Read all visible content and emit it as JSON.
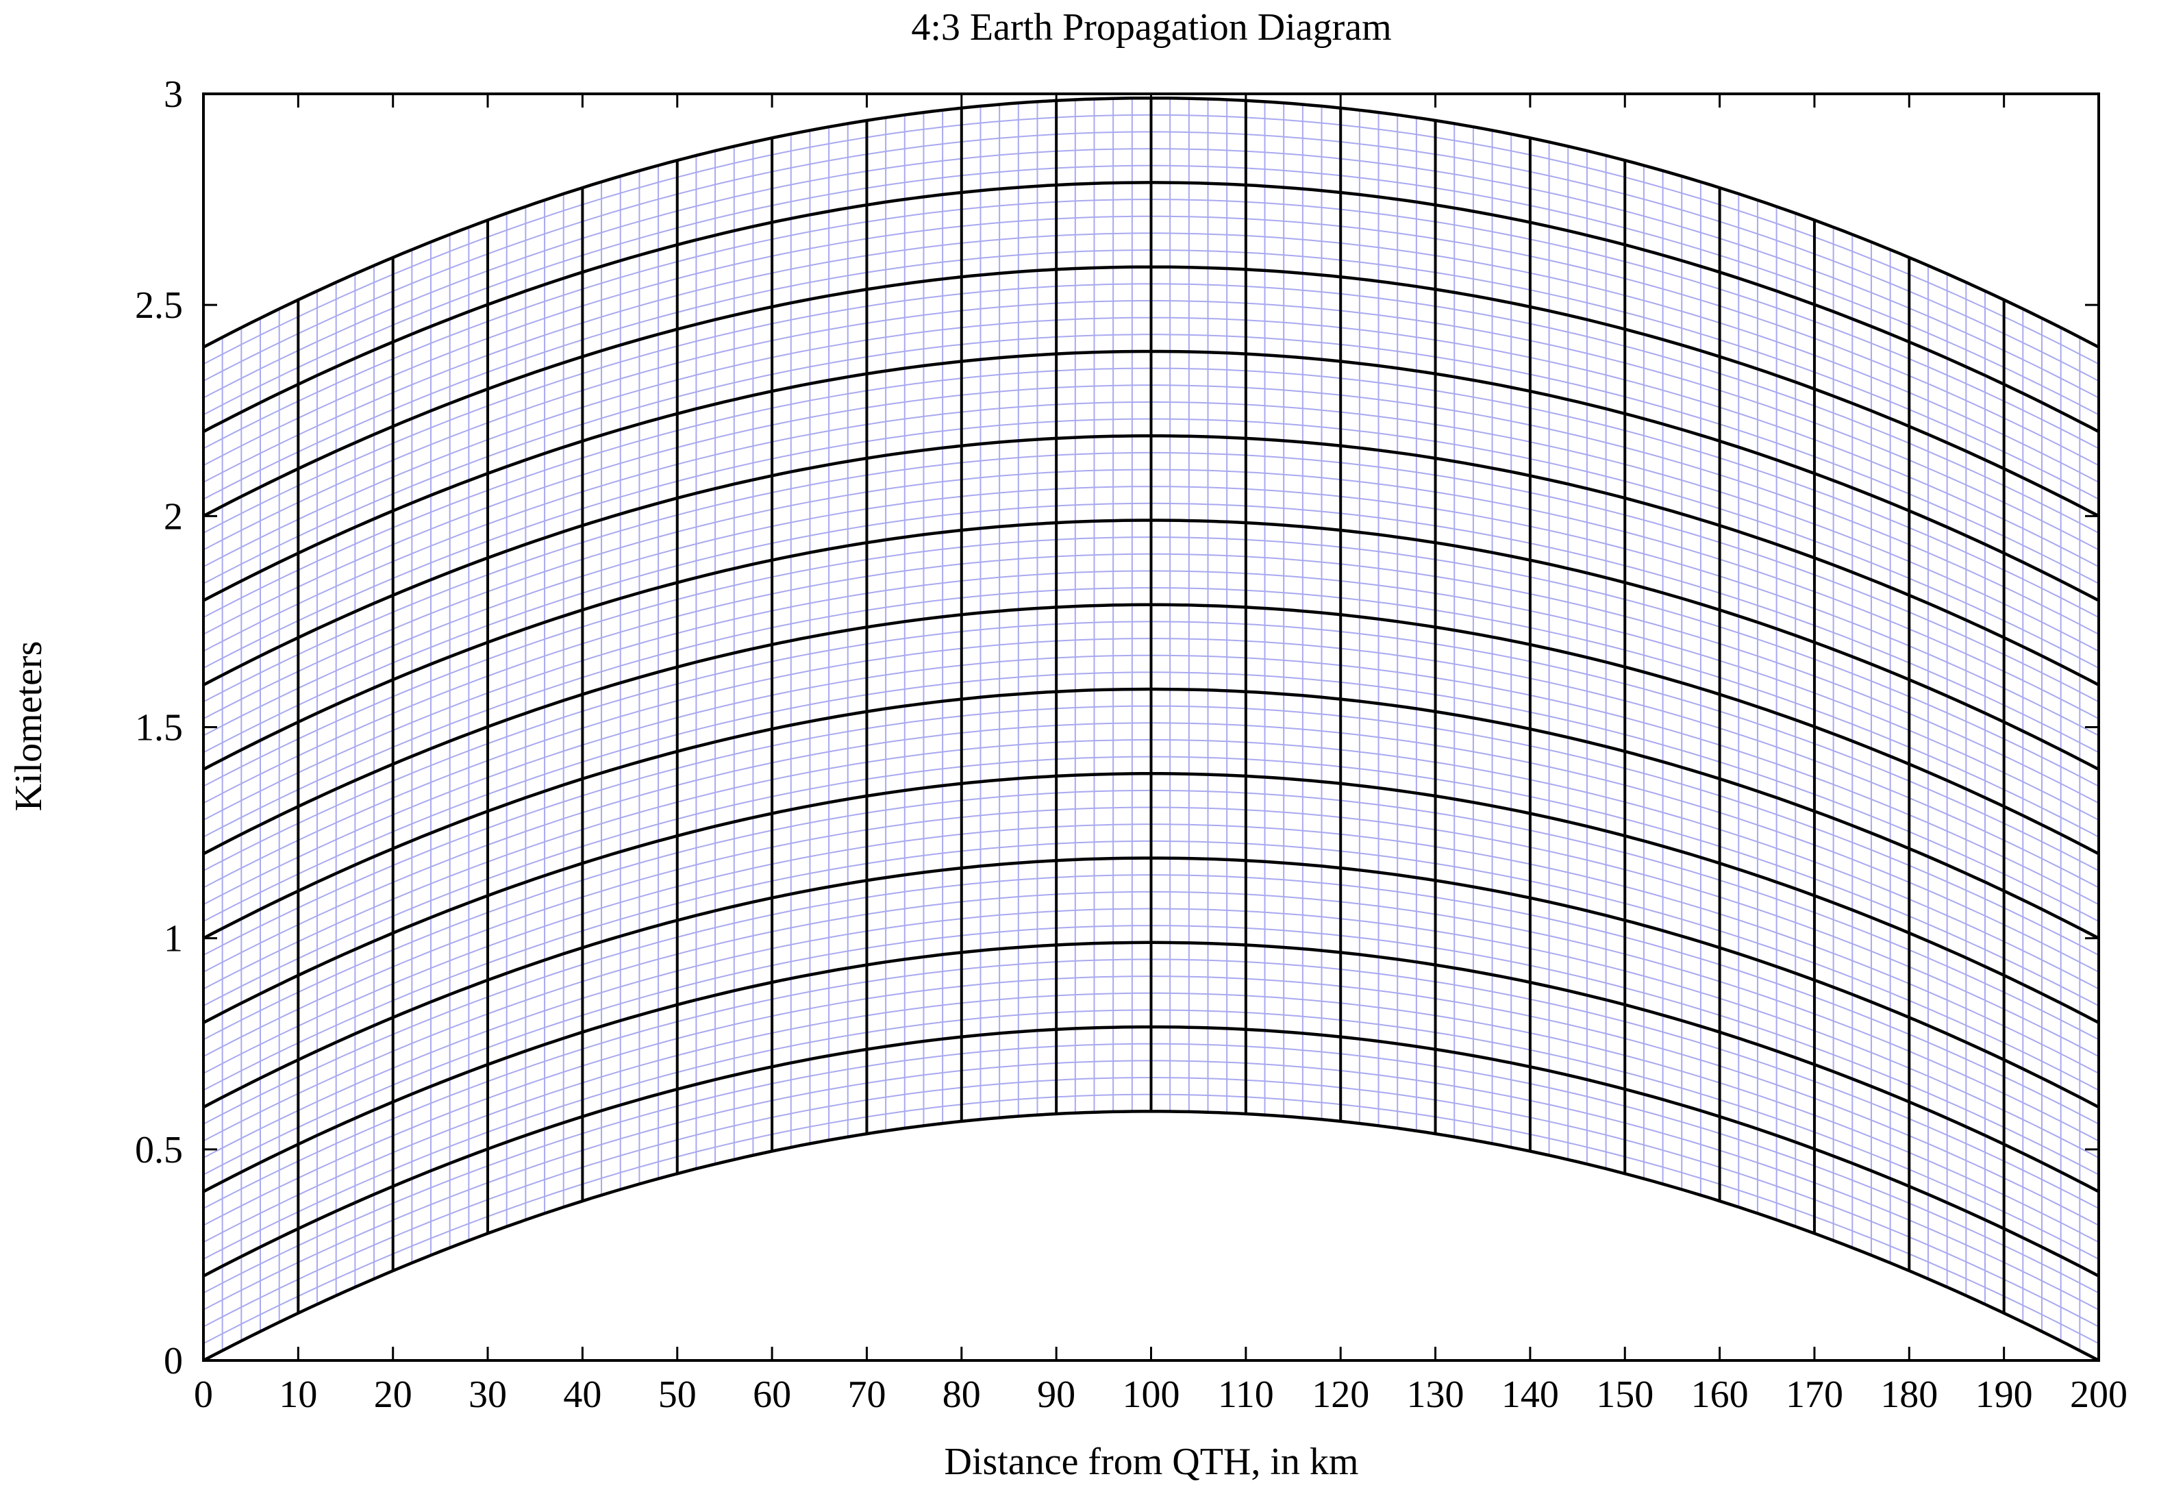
{
  "chart_data": {
    "type": "line",
    "title": "4:3 Earth Propagation Diagram",
    "xlabel": "Distance from QTH, in km",
    "ylabel": "Kilometers",
    "xlim": [
      0,
      200
    ],
    "ylim": [
      0,
      3
    ],
    "x_ticks": [
      "0",
      "10",
      "20",
      "30",
      "40",
      "50",
      "60",
      "70",
      "80",
      "90",
      "100",
      "110",
      "120",
      "130",
      "140",
      "150",
      "160",
      "170",
      "180",
      "190",
      "200"
    ],
    "y_ticks": [
      "0",
      "0.5",
      "1",
      "1.5",
      "2",
      "2.5",
      "3"
    ],
    "grid": "curved earth-bulge grid",
    "x": [
      0,
      100,
      200
    ],
    "series": [
      {
        "values": [
          0.0,
          0.59,
          0.0
        ]
      },
      {
        "values": [
          0.2,
          0.79,
          0.2
        ]
      },
      {
        "values": [
          0.4,
          0.99,
          0.4
        ]
      },
      {
        "values": [
          0.6,
          1.19,
          0.6
        ]
      },
      {
        "values": [
          0.8,
          1.39,
          0.8
        ]
      },
      {
        "values": [
          1.0,
          1.59,
          1.0
        ]
      },
      {
        "values": [
          1.2,
          1.79,
          1.2
        ]
      },
      {
        "values": [
          1.4,
          1.99,
          1.4
        ]
      },
      {
        "values": [
          1.6,
          2.19,
          1.6
        ]
      },
      {
        "values": [
          1.8,
          2.39,
          1.8
        ]
      },
      {
        "values": [
          2.0,
          2.59,
          2.0
        ]
      },
      {
        "values": [
          2.2,
          2.79,
          2.2
        ]
      },
      {
        "values": [
          2.4,
          2.99,
          2.4
        ]
      }
    ],
    "verticals_major_every_km": 10,
    "minor_grid_x_every_km": 2,
    "minor_grid_y_every_km": 0.04,
    "colors": {
      "major_lines": "#000000",
      "minor_lines": "#a9a9f0",
      "frame": "#000000"
    }
  }
}
